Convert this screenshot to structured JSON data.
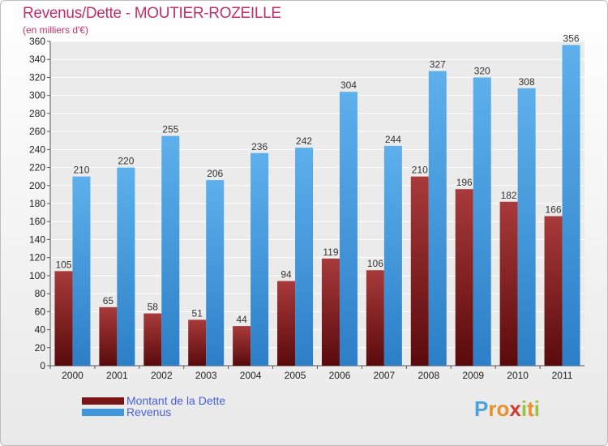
{
  "chart_data": {
    "type": "bar",
    "title": "Revenus/Dette - MOUTIER-ROZEILLE",
    "subtitle": "(en milliers d'€)",
    "categories": [
      "2000",
      "2001",
      "2002",
      "2003",
      "2004",
      "2005",
      "2006",
      "2007",
      "2008",
      "2009",
      "2010",
      "2011"
    ],
    "series": [
      {
        "name": "Montant de la Dette",
        "color": "#7a1518",
        "values": [
          105,
          65,
          58,
          51,
          44,
          94,
          119,
          106,
          210,
          196,
          182,
          166
        ]
      },
      {
        "name": "Revenus",
        "color": "#3f96dd",
        "values": [
          210,
          220,
          255,
          206,
          236,
          242,
          304,
          244,
          327,
          320,
          308,
          356
        ]
      }
    ],
    "ylim": [
      0,
      360
    ],
    "ytick_step": 20,
    "grid": true,
    "legend": "bottom-left"
  },
  "logo": {
    "letters": [
      "P",
      "r",
      "o",
      "x",
      "i",
      "t",
      "i"
    ],
    "colors": [
      "#4aa0dd",
      "#e8902a",
      "#e8902a",
      "#d23a2a",
      "#9ac23c",
      "#e8902a",
      "#9ac23c"
    ]
  }
}
